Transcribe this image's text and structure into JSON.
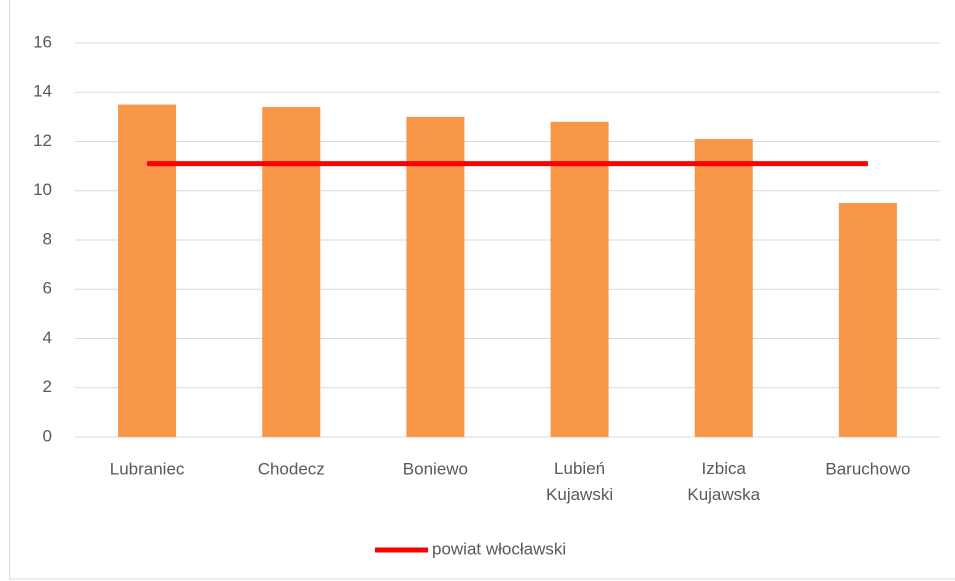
{
  "chart_data": {
    "type": "bar",
    "categories": [
      "Lubraniec",
      "Chodecz",
      "Boniewo",
      "Lubień Kujawski",
      "Izbica Kujawska",
      "Baruchowo"
    ],
    "series": [
      {
        "color": "#f79646",
        "values": [
          13.5,
          13.4,
          13.0,
          12.8,
          12.1,
          9.5
        ]
      },
      {
        "name": "powiat włocławski",
        "type": "line",
        "color": "#ff0000",
        "values": [
          11.1,
          11.1,
          11.1,
          11.1,
          11.1,
          11.1
        ]
      }
    ],
    "ylim": [
      0,
      16
    ],
    "yticks": [
      0,
      2,
      4,
      6,
      8,
      10,
      12,
      14,
      16
    ],
    "grid": true,
    "legend": "bottom"
  }
}
